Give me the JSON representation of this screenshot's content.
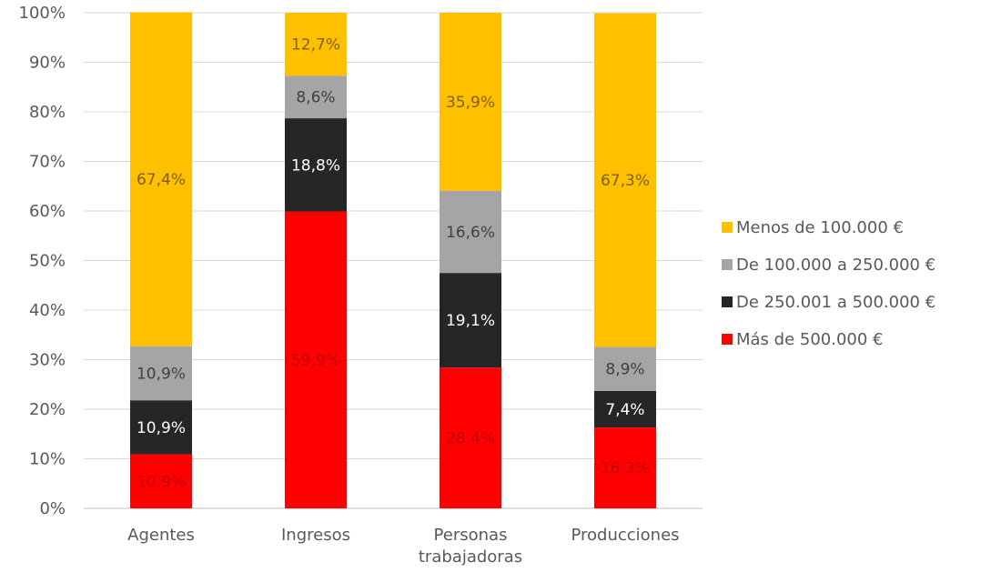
{
  "chart_data": {
    "type": "bar",
    "stacked": true,
    "percent_stacked": true,
    "categories": [
      [
        "Agentes"
      ],
      [
        "Ingresos"
      ],
      [
        "Personas",
        "trabajadoras"
      ],
      [
        "Producciones"
      ]
    ],
    "series": [
      {
        "name": "Más de 500.000 €",
        "color": "#ff0000",
        "label_color": "#c00000",
        "values": [
          10.9,
          59.9,
          28.4,
          16.3
        ],
        "labels": [
          "10,9%",
          "59,9%",
          "28,4%",
          "16,3%"
        ]
      },
      {
        "name": "De 250.001 a 500.000 €",
        "color": "#262626",
        "label_color": "#ffffff",
        "values": [
          10.9,
          18.8,
          19.1,
          7.4
        ],
        "labels": [
          "10,9%",
          "18,8%",
          "19,1%",
          "7,4%"
        ]
      },
      {
        "name": "De 100.000 a 250.000 €",
        "color": "#a5a5a5",
        "label_color": "#404040",
        "values": [
          10.9,
          8.6,
          16.6,
          8.9
        ],
        "labels": [
          "10,9%",
          "8,6%",
          "16,6%",
          "8,9%"
        ]
      },
      {
        "name": "Menos de 100.000 €",
        "color": "#ffc000",
        "label_color": "#7f6000",
        "values": [
          67.4,
          12.7,
          35.9,
          67.3
        ],
        "labels": [
          "67,4%",
          "12,7%",
          "35,9%",
          "67,3%"
        ]
      }
    ],
    "y_ticks": [
      "0%",
      "10%",
      "20%",
      "30%",
      "40%",
      "50%",
      "60%",
      "70%",
      "80%",
      "90%",
      "100%"
    ],
    "ylim": [
      0,
      100
    ],
    "grid": true,
    "legend_position": "right",
    "legend_order": [
      3,
      2,
      1,
      0
    ]
  }
}
